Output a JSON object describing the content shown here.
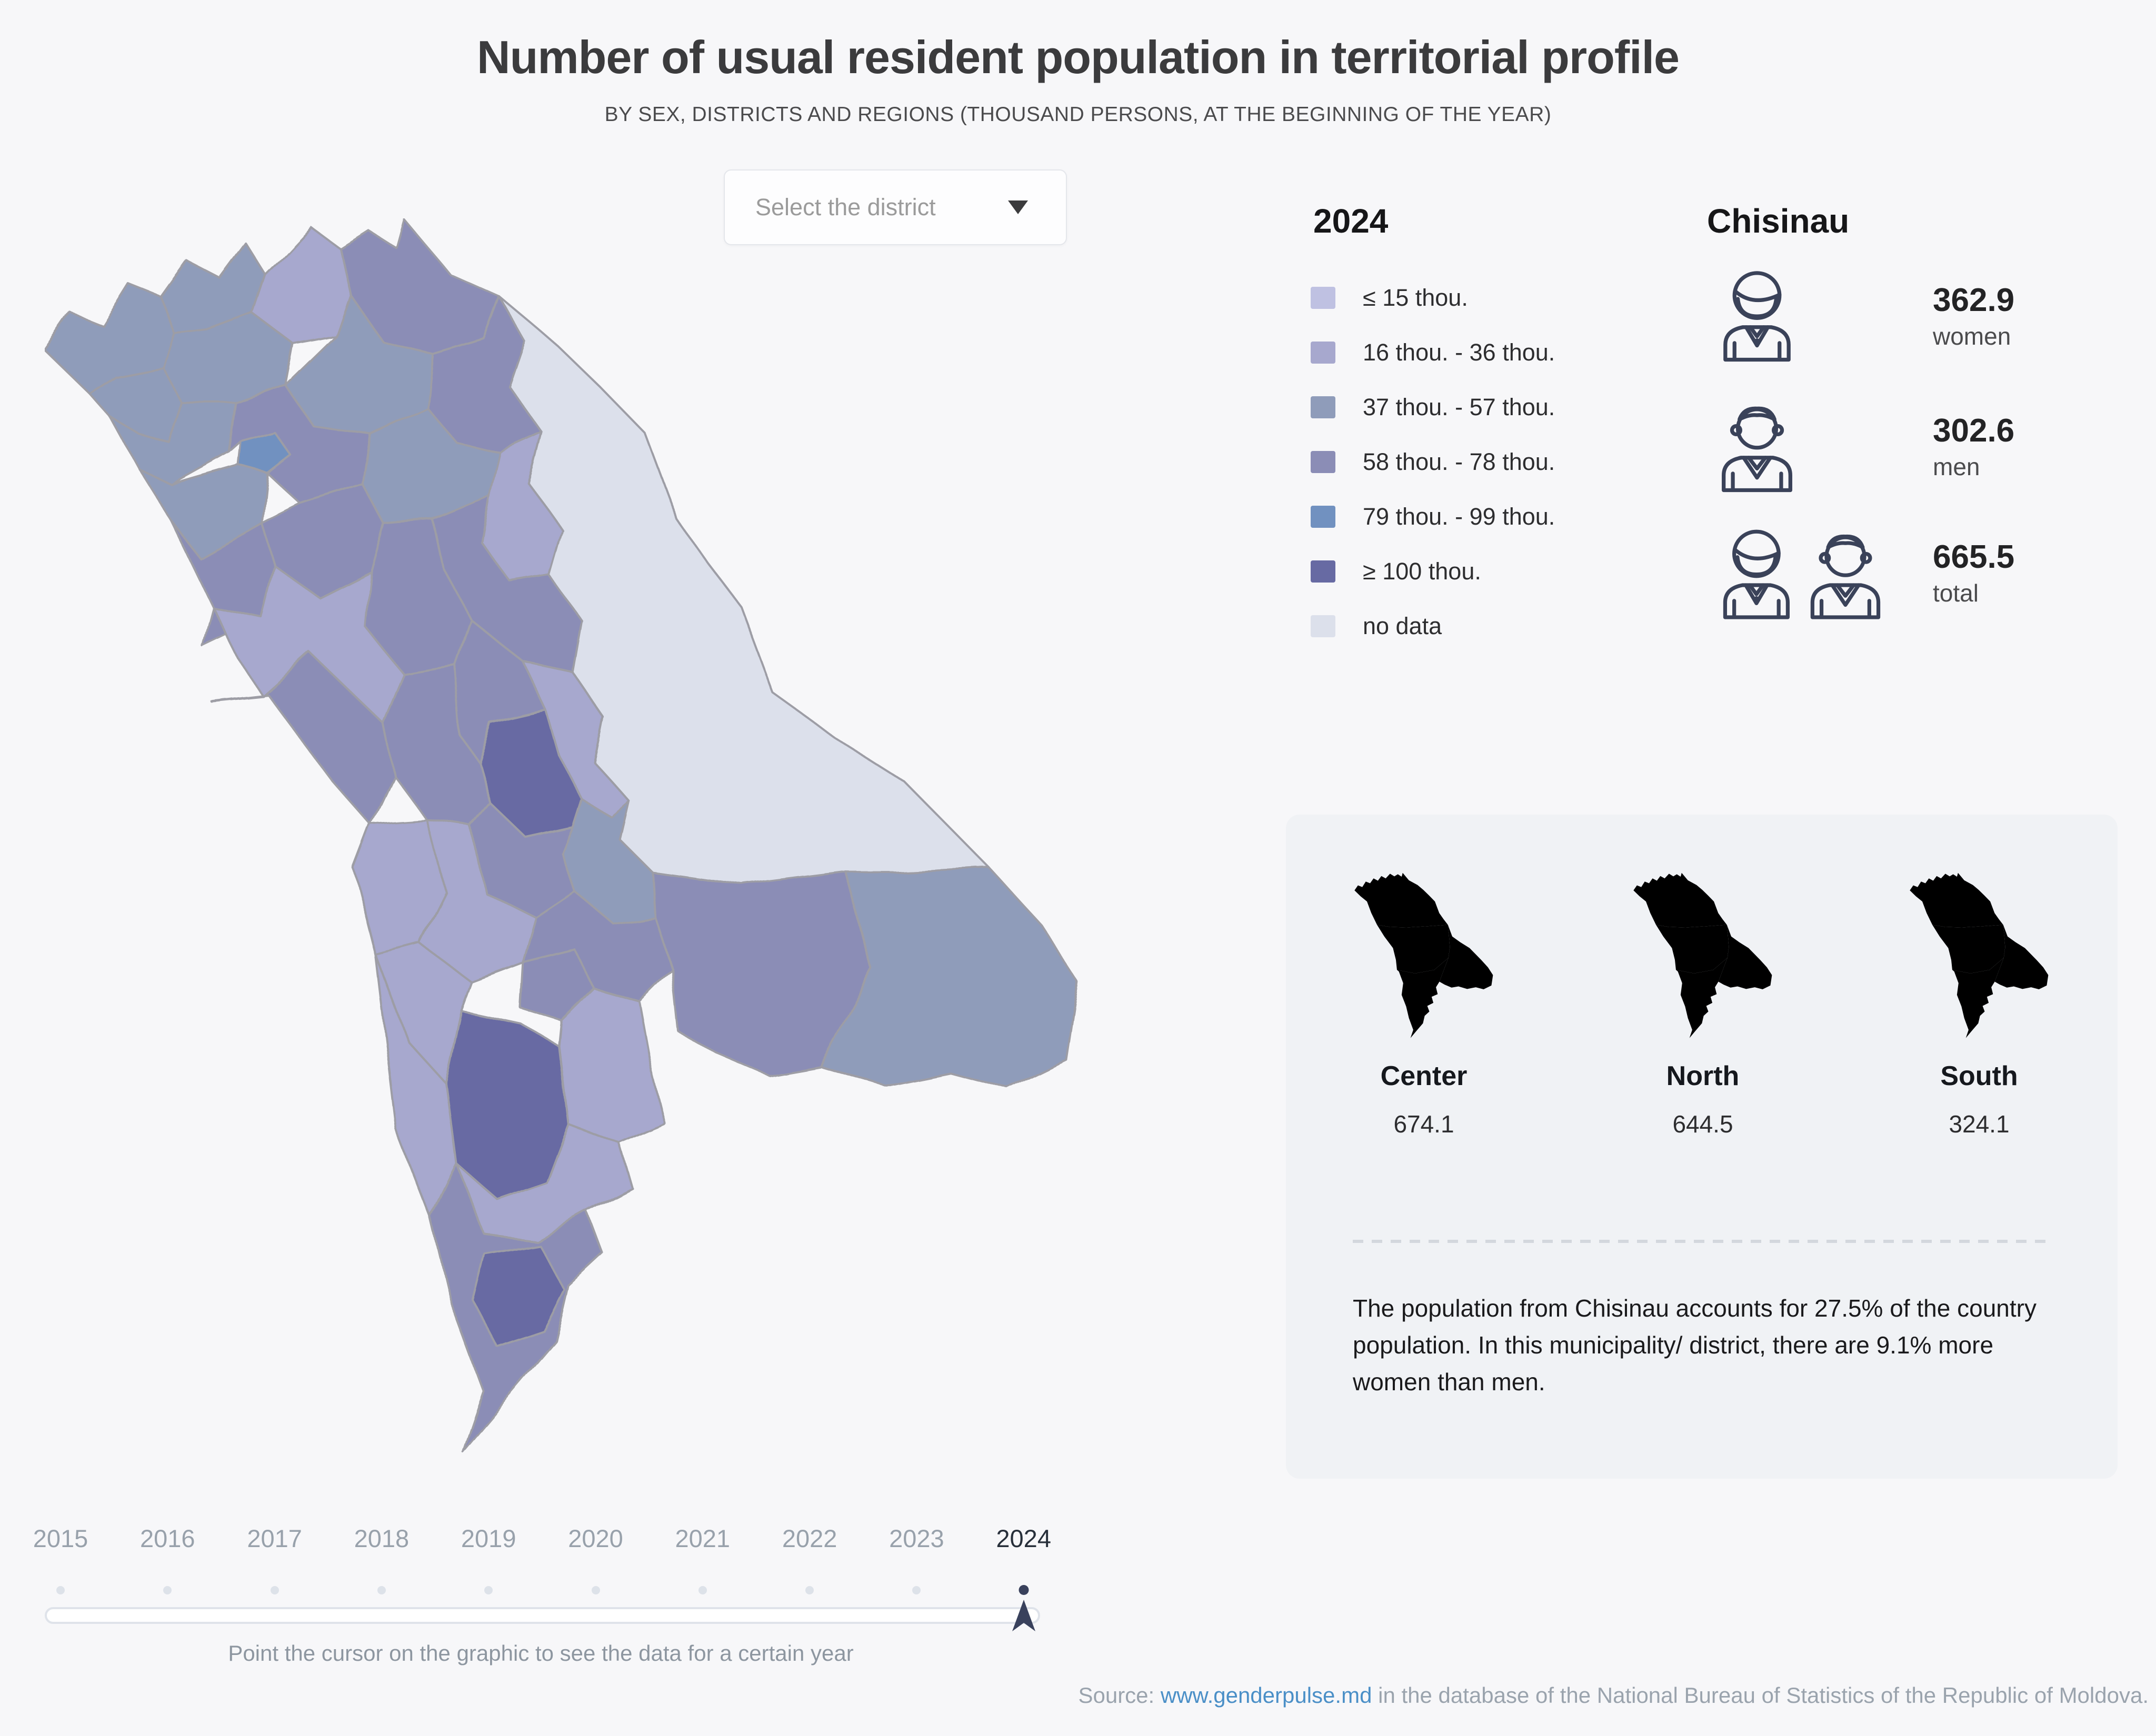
{
  "header": {
    "title": "Number of usual resident population in territorial profile",
    "subtitle": "BY SEX, DISTRICTS AND REGIONS (THOUSAND PERSONS, AT THE BEGINNING OF THE YEAR)"
  },
  "controls": {
    "district_select_placeholder": "Select the district"
  },
  "legend": {
    "year": "2024",
    "items": [
      {
        "label": "≤ 15 thou.",
        "color": "#bfc1e2"
      },
      {
        "label": "16 thou. - 36 thou.",
        "color": "#a7a8ce"
      },
      {
        "label": "37 thou. - 57 thou.",
        "color": "#8f9cba"
      },
      {
        "label": "58 thou. - 78 thou.",
        "color": "#8b8db6"
      },
      {
        "label": "79 thou. - 99 thou.",
        "color": "#7191c0"
      },
      {
        "label": "≥ 100 thou.",
        "color": "#676aa3"
      },
      {
        "label": "no data",
        "color": "#dce0eb"
      }
    ]
  },
  "chisinau": {
    "title": "Chisinau",
    "stats": [
      {
        "value": "362.9",
        "label": "women",
        "icon": "woman-icon"
      },
      {
        "value": "302.6",
        "label": "men",
        "icon": "man-icon"
      },
      {
        "value": "665.5",
        "label": "total",
        "icon": "woman-man-icon"
      }
    ]
  },
  "regions": {
    "highlight_color": "#f9b33a",
    "items": [
      {
        "name": "Center",
        "value": "674.1"
      },
      {
        "name": "North",
        "value": "644.5"
      },
      {
        "name": "South",
        "value": "324.1"
      }
    ],
    "note": "The population from Chisinau accounts for 27.5% of the country population. In this municipality/ district, there are 9.1% more women than men."
  },
  "timeline": {
    "years": [
      "2015",
      "2016",
      "2017",
      "2018",
      "2019",
      "2020",
      "2021",
      "2022",
      "2023",
      "2024"
    ],
    "selected": "2024",
    "hint": "Point the cursor on the graphic to see the data for a certain year"
  },
  "source": {
    "prefix": "Source: ",
    "link_text": "www.genderpulse.md",
    "suffix": " in the database of the National Bureau of Statistics of the Republic of Moldova."
  },
  "chart_data": {
    "type": "choropleth_map",
    "title": "Number of usual resident population in territorial profile",
    "year": "2024",
    "unit": "thousand persons",
    "bins": [
      "≤ 15 thou.",
      "16 thou. - 36 thou.",
      "37 thou. - 57 thou.",
      "58 thou. - 78 thou.",
      "79 thou. - 99 thou.",
      "≥ 100 thou.",
      "no data"
    ],
    "selected_district": {
      "name": "Chisinau",
      "women": 362.9,
      "men": 302.6,
      "total": 665.5
    },
    "region_totals": [
      {
        "region": "Center",
        "total": 674.1
      },
      {
        "region": "North",
        "total": 644.5
      },
      {
        "region": "South",
        "total": 324.1
      }
    ]
  }
}
